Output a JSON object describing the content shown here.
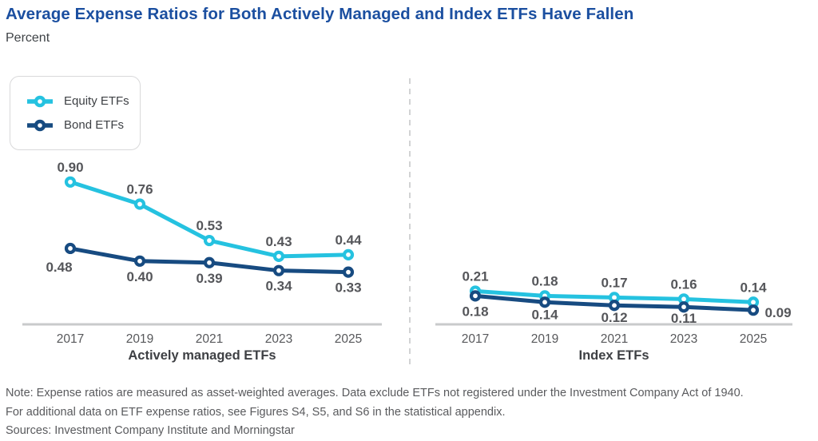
{
  "title": "Average Expense Ratios for Both Actively Managed and Index ETFs Have Fallen",
  "subtitle": "Percent",
  "legend": {
    "items": [
      {
        "label": "Equity ETFs",
        "color": "#25c2e0"
      },
      {
        "label": "Bond ETFs",
        "color": "#174b81"
      }
    ]
  },
  "chart_data": {
    "type": "line",
    "title": "Average Expense Ratios for Both Actively Managed and Index ETFs Have Fallen",
    "ylabel": "Percent",
    "categories": [
      "2017",
      "2019",
      "2021",
      "2023",
      "2025"
    ],
    "ylim": [
      0,
      1.0
    ],
    "grid": false,
    "legend_position": "top-left",
    "panels": [
      {
        "label": "Actively managed ETFs",
        "series": [
          {
            "name": "Equity ETFs",
            "color": "#25c2e0",
            "label_position": "above",
            "values": [
              0.9,
              0.76,
              0.53,
              0.43,
              0.44
            ]
          },
          {
            "name": "Bond ETFs",
            "color": "#174b81",
            "label_position": "below",
            "values": [
              0.48,
              0.4,
              0.39,
              0.34,
              0.33
            ],
            "label_dx": [
              -14,
              0,
              0,
              0,
              0
            ],
            "label_dy": [
              4,
              0,
              0,
              0,
              0
            ]
          }
        ]
      },
      {
        "label": "Index ETFs",
        "series": [
          {
            "name": "Equity ETFs",
            "color": "#25c2e0",
            "label_position": "above",
            "values": [
              0.21,
              0.18,
              0.17,
              0.16,
              0.14
            ]
          },
          {
            "name": "Bond ETFs",
            "color": "#174b81",
            "label_position": "below",
            "values": [
              0.18,
              0.14,
              0.12,
              0.11,
              0.09
            ],
            "label_dx": [
              0,
              0,
              0,
              0,
              31
            ],
            "label_dy": [
              0,
              -4,
              -4,
              -5,
              -16
            ]
          }
        ]
      }
    ]
  },
  "note_lines": [
    "Note: Expense ratios are measured as asset-weighted averages. Data exclude ETFs not registered under the Investment Company Act of 1940.",
    "For additional data on ETF expense ratios, see Figures S4, S5, and S6 in the statistical appendix."
  ],
  "sources": "Sources: Investment Company Institute and Morningstar",
  "colors": {
    "title": "#1b4fa0",
    "subtitle": "#3f4347",
    "equity": "#25c2e0",
    "bond": "#174b81",
    "data_label": "#55565a",
    "tick_label": "#57585b",
    "panel_label": "#3e4044",
    "axis": "#c9cacb",
    "divider": "#d2d3d4",
    "note": "#595a5d",
    "legend_border": "#d9d9da",
    "legend_text": "#3e4145"
  }
}
